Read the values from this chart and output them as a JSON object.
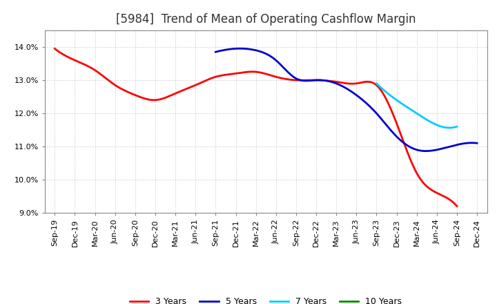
{
  "title": "[5984]  Trend of Mean of Operating Cashflow Margin",
  "ylim": [
    0.09,
    0.145
  ],
  "yticks": [
    0.09,
    0.1,
    0.11,
    0.12,
    0.13,
    0.14
  ],
  "ytick_labels": [
    "9.0%",
    "10.0%",
    "11.0%",
    "12.0%",
    "13.0%",
    "14.0%"
  ],
  "background_color": "#ffffff",
  "grid_color": "#bbbbbb",
  "series": {
    "3 Years": {
      "color": "#ff0000",
      "x": [
        "Sep-19",
        "Dec-19",
        "Mar-20",
        "Jun-20",
        "Sep-20",
        "Dec-20",
        "Mar-21",
        "Jun-21",
        "Sep-21",
        "Dec-21",
        "Mar-22",
        "Jun-22",
        "Sep-22",
        "Dec-22",
        "Mar-23",
        "Jun-23",
        "Sep-23",
        "Dec-23",
        "Mar-24",
        "Jun-24",
        "Sep-24"
      ],
      "y": [
        0.1395,
        0.136,
        0.133,
        0.1285,
        0.1255,
        0.124,
        0.126,
        0.1285,
        0.131,
        0.132,
        0.1325,
        0.131,
        0.13,
        0.13,
        0.1295,
        0.129,
        0.1285,
        0.117,
        0.102,
        0.096,
        0.092
      ]
    },
    "5 Years": {
      "color": "#0000cc",
      "x": [
        "Sep-21",
        "Dec-21",
        "Mar-22",
        "Jun-22",
        "Sep-22",
        "Dec-22",
        "Mar-23",
        "Jun-23",
        "Sep-23",
        "Dec-23",
        "Mar-24",
        "Jun-24",
        "Sep-24",
        "Dec-24"
      ],
      "y": [
        0.1385,
        0.1395,
        0.139,
        0.136,
        0.1305,
        0.13,
        0.129,
        0.1255,
        0.12,
        0.113,
        0.109,
        0.109,
        0.1105,
        0.111
      ]
    },
    "7 Years": {
      "color": "#00ccff",
      "x": [
        "Sep-23",
        "Dec-23",
        "Mar-24",
        "Jun-24",
        "Sep-24"
      ],
      "y": [
        0.129,
        0.124,
        0.12,
        0.1165,
        0.116
      ]
    },
    "10 Years": {
      "color": "#008800",
      "x": [],
      "y": []
    }
  },
  "xtick_labels": [
    "Sep-19",
    "Dec-19",
    "Mar-20",
    "Jun-20",
    "Sep-20",
    "Dec-20",
    "Mar-21",
    "Jun-21",
    "Sep-21",
    "Dec-21",
    "Mar-22",
    "Jun-22",
    "Sep-22",
    "Dec-22",
    "Mar-23",
    "Jun-23",
    "Sep-23",
    "Dec-23",
    "Mar-24",
    "Jun-24",
    "Sep-24",
    "Dec-24"
  ],
  "legend_order": [
    "3 Years",
    "5 Years",
    "7 Years",
    "10 Years"
  ],
  "title_fontsize": 12,
  "tick_fontsize": 8,
  "legend_fontsize": 9,
  "linewidth": 2.0
}
